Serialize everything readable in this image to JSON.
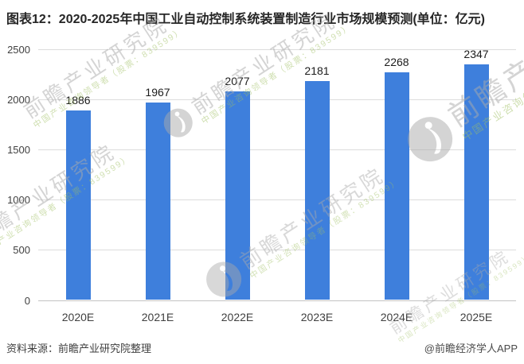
{
  "title": "图表12：2020-2025年中国工业自动控制系统装置制造行业市场规模预测(单位：亿元)",
  "chart_data": {
    "type": "bar",
    "categories": [
      "2020E",
      "2021E",
      "2022E",
      "2023E",
      "2024E",
      "2025E"
    ],
    "values": [
      1886,
      1967,
      2077,
      2181,
      2268,
      2347
    ],
    "title": "图表12：2020-2025年中国工业自动控制系统装置制造行业市场规模预测(单位：亿元)",
    "xlabel": "",
    "ylabel": "",
    "unit": "亿元",
    "ylim": [
      0,
      2500
    ],
    "ytick_step": 500,
    "ytick_labels": [
      "0",
      "500",
      "1000",
      "1500",
      "2000",
      "2500"
    ],
    "grid": true,
    "legend": false,
    "bar_color": "#3E7FDC",
    "value_label_color": "#1c1c1c",
    "tick_color": "#404040"
  },
  "footer": {
    "source": "资料来源：前瞻产业研究院整理",
    "credit": "@前瞻经济学人APP"
  },
  "watermark": {
    "main": "前瞻产业研究院",
    "sub": "中国产业咨询领导者（股票：839599）"
  }
}
